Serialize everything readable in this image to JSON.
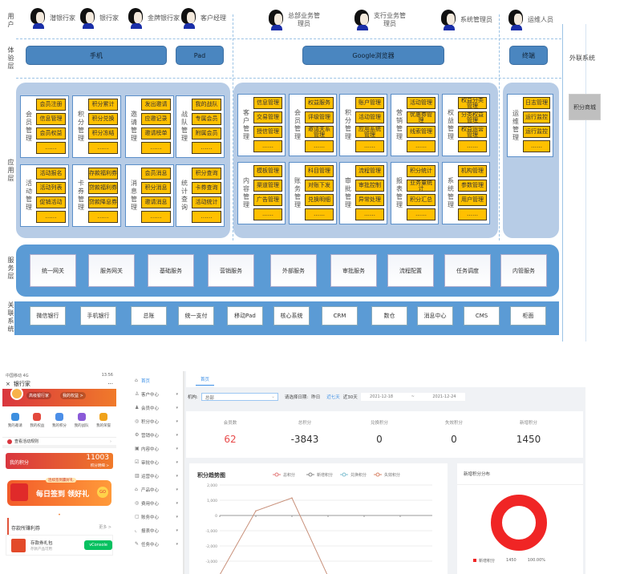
{
  "layers": {
    "user": "用户",
    "experience": "体验层",
    "application": "应用层",
    "service": "服务层",
    "related": "关联系统",
    "external": "外联系统"
  },
  "users": [
    "潜银行家",
    "银行家",
    "金牌银行家",
    "客户经理",
    "总部业务管理员",
    "支行业务管理员",
    "系统管理员",
    "运维人员"
  ],
  "experience": [
    "手机",
    "Pad",
    "Google浏览器",
    "终端"
  ],
  "app_area1": [
    {
      "label": "会员管理",
      "items": [
        "会员注册",
        "信息管理",
        "会员权益",
        "……"
      ]
    },
    {
      "label": "积分管理",
      "items": [
        "积分累计",
        "积分兑换",
        "积分冻结",
        "……"
      ]
    },
    {
      "label": "邀请管理",
      "items": [
        "发出邀请",
        "应邀记录",
        "邀请榜单",
        "……"
      ]
    },
    {
      "label": "战队管理",
      "items": [
        "我的战队",
        "专属会员",
        "附属会员",
        "……"
      ]
    },
    {
      "label": "活动管理",
      "items": [
        "活动报名",
        "活动列表",
        "促销活动",
        "……"
      ]
    },
    {
      "label": "卡券管理",
      "items": [
        "存款福利券",
        "贷款福利券",
        "贷款降息券",
        "……"
      ]
    },
    {
      "label": "消息管理",
      "items": [
        "会员消息",
        "积分消息",
        "邀请消息",
        "……"
      ]
    },
    {
      "label": "统计查询",
      "items": [
        "积分查询",
        "卡券查询",
        "活动统计",
        "……"
      ]
    }
  ],
  "app_area2": [
    {
      "label": "客户管理",
      "items": [
        "信息管理",
        "交易管理",
        "授信管理",
        "……"
      ]
    },
    {
      "label": "会员管理",
      "items": [
        "权益服务",
        "评级管理",
        "邀请关系管理",
        "……"
      ]
    },
    {
      "label": "积分管理",
      "items": [
        "账户管理",
        "活动管理",
        "应用系统管理",
        "……"
      ]
    },
    {
      "label": "营销管理",
      "items": [
        "活动管理",
        "优惠券管理",
        "线索管理",
        "……"
      ]
    },
    {
      "label": "权益管理",
      "items": [
        "权益分类管理",
        "分类权益管理",
        "权益运营管理",
        "……"
      ]
    },
    {
      "label": "内容管理",
      "items": [
        "模板管理",
        "渠道管理",
        "广告管理",
        "……"
      ]
    },
    {
      "label": "账务管理",
      "items": [
        "科目管理",
        "对账下发",
        "兑换明细",
        "……"
      ]
    },
    {
      "label": "审批管理",
      "items": [
        "流程管理",
        "审批控制",
        "异常处理",
        "……"
      ]
    },
    {
      "label": "报表管理",
      "items": [
        "积分统计",
        "业务量统计",
        "积分汇总",
        "……"
      ]
    },
    {
      "label": "系统管理",
      "items": [
        "机构管理",
        "参数管理",
        "用户管理",
        "……"
      ]
    }
  ],
  "app_area3": [
    {
      "label": "运维管理",
      "items": [
        "日志管理",
        "运行监控",
        "运行监控",
        "……"
      ]
    }
  ],
  "points_mall": "积分商城",
  "services": [
    "统一网关",
    "服务网关",
    "基础服务",
    "营销服务",
    "外部服务",
    "审批服务",
    "流程配置",
    "任务调度",
    "内管服务"
  ],
  "related_systems": [
    "微信银行",
    "手机银行",
    "总账",
    "统一支付",
    "移动Pad",
    "核心系统",
    "CRM",
    "数仓",
    "消息中心",
    "CMS",
    "柜面"
  ],
  "phone": {
    "status_left": "中国移动 4G",
    "status_right": "13:56",
    "title": "银行家",
    "close_icon": "×",
    "more": "···",
    "badge1": "高级银行家",
    "badge2": "我的权益 >",
    "icons": [
      {
        "label": "我的邀请",
        "color": "#3d8fe0"
      },
      {
        "label": "我的权益",
        "color": "#e3483c"
      },
      {
        "label": "我的积分",
        "color": "#4b8ee8"
      },
      {
        "label": "我的战队",
        "color": "#8a5ad8"
      },
      {
        "label": "我的荣誉",
        "color": "#f0a21a"
      }
    ],
    "notice": "查看活动规则",
    "points_label": "我的积分",
    "points_value": "11003",
    "points_sub": "积分明细 >",
    "banner_top": "连续签到赢好礼",
    "banner_text": "每日签到 领好礼",
    "banner_go": "GO",
    "section_title": "存款所赚利券",
    "section_more": "更多 >",
    "coupon_title": "存款券礼包",
    "coupon_sub": "存款产品可用",
    "vconsole": "vConsole"
  },
  "dashboard": {
    "sidebar": [
      {
        "label": "首页",
        "icon": "⌂",
        "active": true
      },
      {
        "label": "客户中心",
        "icon": "♙"
      },
      {
        "label": "会员中心",
        "icon": "♟"
      },
      {
        "label": "积分中心",
        "icon": "◎"
      },
      {
        "label": "营销中心",
        "icon": "⚙"
      },
      {
        "label": "内容中心",
        "icon": "▣"
      },
      {
        "label": "审批中心",
        "icon": "☑"
      },
      {
        "label": "运营中心",
        "icon": "▥"
      },
      {
        "label": "产品中心",
        "icon": "⌂"
      },
      {
        "label": "费用中心",
        "icon": "◎"
      },
      {
        "label": "账务中心",
        "icon": "▢"
      },
      {
        "label": "报表中心",
        "icon": "⌞"
      },
      {
        "label": "任务中心",
        "icon": "✎"
      }
    ],
    "tab": "首页",
    "org_label": "机构:",
    "org_value": "总部",
    "date_label": "请选择日期:",
    "date_options": [
      "昨日",
      "近七天",
      "近30天"
    ],
    "date_start": "2021-12-18",
    "date_sep": "~",
    "date_end": "2021-12-24",
    "stats": [
      {
        "label": "会员数",
        "value": "62",
        "color": "#e84a4a"
      },
      {
        "label": "总积分",
        "value": "-3843"
      },
      {
        "label": "兑换积分",
        "value": "0"
      },
      {
        "label": "失效积分",
        "value": "0"
      },
      {
        "label": "新增积分",
        "value": "1450"
      }
    ],
    "donut": {
      "title": "新增积分分布",
      "legend_label": "新增积分",
      "legend_value": "1450",
      "legend_pct": "100.00%",
      "color": "#f02525"
    }
  },
  "chart_data": {
    "type": "line",
    "title": "积分趋势图",
    "legend": [
      "总积分",
      "新增积分",
      "兑换积分",
      "失效积分"
    ],
    "legend_colors": [
      "#e37a7a",
      "#888888",
      "#7fbfd0",
      "#d9866a"
    ],
    "yticks": [
      "2,000",
      "1,000",
      "0",
      "-1,000",
      "-2,000",
      "-3,000"
    ],
    "ylim": [
      -3000,
      2000
    ],
    "series": [
      {
        "name": "总积分",
        "color": "#c8907a",
        "values": [
          -3900,
          300,
          1150,
          -4000
        ]
      }
    ],
    "grid": true
  }
}
